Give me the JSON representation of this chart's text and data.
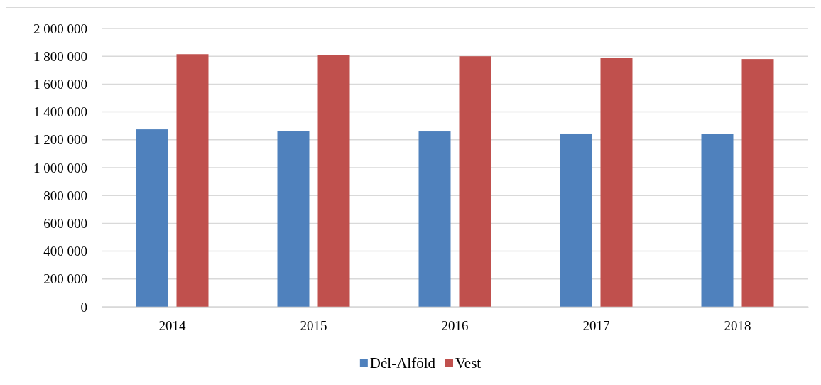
{
  "chart_data": {
    "type": "bar",
    "categories": [
      "2014",
      "2015",
      "2016",
      "2017",
      "2018"
    ],
    "series": [
      {
        "name": "Dél-Alföld",
        "color": "#4f81bd",
        "values": [
          1275000,
          1265000,
          1260000,
          1245000,
          1240000
        ]
      },
      {
        "name": "Vest",
        "color": "#c0504d",
        "values": [
          1815000,
          1810000,
          1800000,
          1790000,
          1780000
        ]
      }
    ],
    "ylim": [
      0,
      2000000
    ],
    "yticks": [
      {
        "value": 0,
        "label": "0"
      },
      {
        "value": 200000,
        "label": "200 000"
      },
      {
        "value": 400000,
        "label": "400 000"
      },
      {
        "value": 600000,
        "label": "600 000"
      },
      {
        "value": 800000,
        "label": "800 000"
      },
      {
        "value": 1000000,
        "label": "1 000 000"
      },
      {
        "value": 1200000,
        "label": "1 200 000"
      },
      {
        "value": 1400000,
        "label": "1 400 000"
      },
      {
        "value": 1600000,
        "label": "1 600 000"
      },
      {
        "value": 1800000,
        "label": "1 800 000"
      },
      {
        "value": 2000000,
        "label": "2 000 000"
      }
    ],
    "grid": "y",
    "legend": "bottom"
  }
}
